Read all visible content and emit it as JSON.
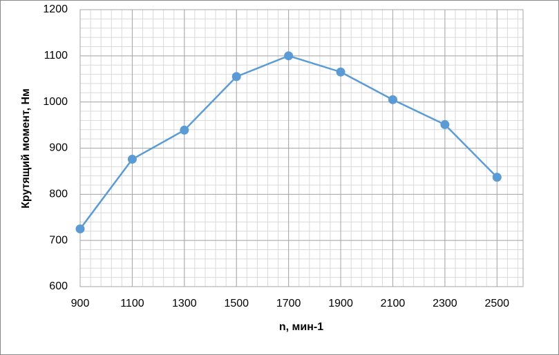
{
  "chart_data": {
    "type": "line",
    "x_label": "n, мин-1",
    "y_label": "Крутящий момент, Нм",
    "x": [
      900,
      1100,
      1300,
      1500,
      1700,
      1900,
      2100,
      2300,
      2500
    ],
    "series": [
      {
        "name": "Крутящий момент",
        "color": "#5b9bd5",
        "values": [
          725,
          876,
          939,
          1055,
          1100,
          1065,
          1005,
          951,
          837
        ]
      }
    ],
    "xlim": [
      900,
      2600
    ],
    "xticks": [
      900,
      1100,
      1300,
      1500,
      1700,
      1900,
      2100,
      2300,
      2500
    ],
    "ylim": [
      600,
      1200
    ],
    "yticks": [
      600,
      700,
      800,
      900,
      1000,
      1100,
      1200
    ],
    "grid": true,
    "minor_grid_divisions": 5
  }
}
